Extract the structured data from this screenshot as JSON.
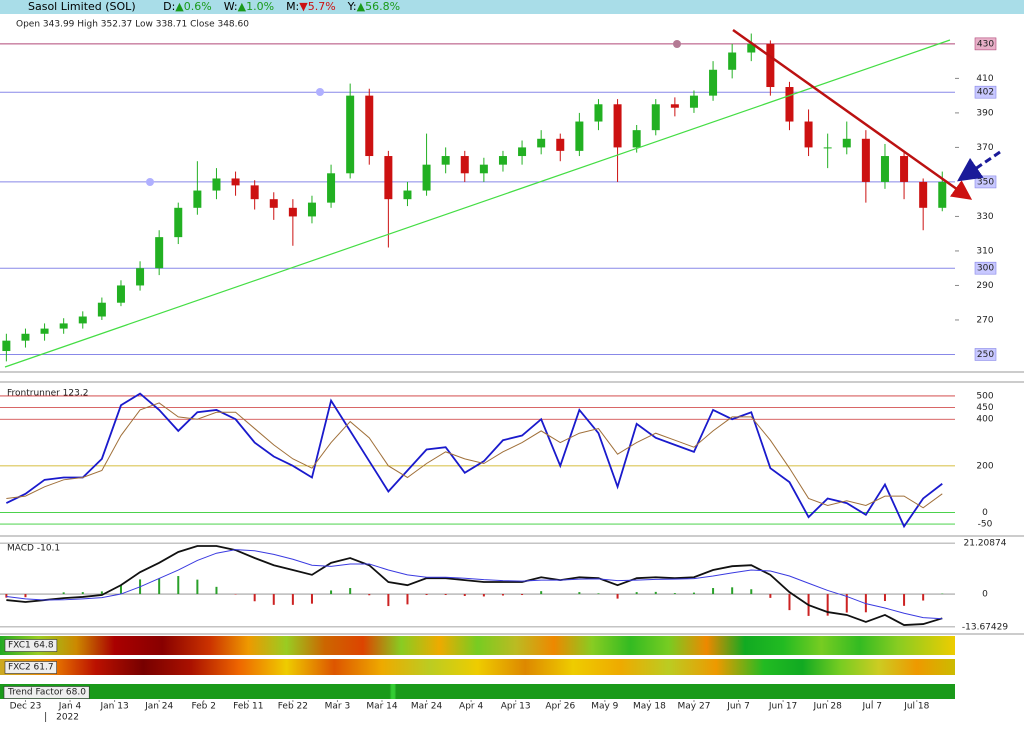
{
  "header": {
    "title": "Sasol Limited (SOL)",
    "changes": [
      {
        "label": "D:",
        "value": "▲0.6%",
        "color": "#1a9a1a"
      },
      {
        "label": "W:",
        "value": "▲1.0%",
        "color": "#1a9a1a"
      },
      {
        "label": "M:",
        "value": "▼5.7%",
        "color": "#cc1111"
      },
      {
        "label": "Y:",
        "value": "▲56.8%",
        "color": "#1a9a1a"
      }
    ]
  },
  "chart_data": [
    {
      "type": "candlestick",
      "subtitle": "Open 343.99  High 352.37  Low 338.71  Close 348.60",
      "x": [
        0,
        3,
        6,
        9,
        12,
        15,
        18,
        21,
        24,
        27,
        30,
        33,
        36,
        39,
        42,
        45,
        48,
        51,
        54,
        57,
        60,
        63,
        66,
        69,
        72,
        75,
        78,
        81,
        84,
        87,
        90,
        93,
        96,
        99,
        102,
        105,
        108,
        111,
        114,
        117,
        120,
        123,
        126,
        129,
        132,
        135,
        138,
        141,
        144,
        147
      ],
      "open": [
        252,
        258,
        262,
        265,
        268,
        272,
        280,
        290,
        300,
        318,
        335,
        345,
        352,
        348,
        340,
        335,
        330,
        338,
        355,
        400,
        365,
        340,
        345,
        360,
        365,
        355,
        360,
        365,
        370,
        375,
        368,
        385,
        395,
        370,
        380,
        395,
        393,
        400,
        415,
        425,
        430,
        405,
        385,
        370,
        370,
        375,
        350,
        365,
        350,
        335
      ],
      "high": [
        262,
        265,
        268,
        271,
        275,
        283,
        293,
        304,
        322,
        338,
        362,
        358,
        356,
        351,
        344,
        340,
        342,
        360,
        407,
        404,
        368,
        350,
        378,
        370,
        368,
        364,
        368,
        374,
        380,
        378,
        390,
        398,
        398,
        383,
        398,
        399,
        403,
        420,
        430,
        436,
        432,
        408,
        392,
        378,
        385,
        380,
        372,
        368,
        352,
        356
      ],
      "low": [
        246,
        254,
        258,
        262,
        265,
        270,
        278,
        287,
        296,
        314,
        331,
        340,
        342,
        334,
        328,
        313,
        326,
        335,
        352,
        360,
        312,
        336,
        342,
        355,
        350,
        350,
        356,
        360,
        366,
        362,
        365,
        380,
        350,
        367,
        377,
        388,
        390,
        397,
        410,
        420,
        400,
        380,
        365,
        358,
        366,
        338,
        346,
        340,
        322,
        333
      ],
      "close": [
        258,
        262,
        265,
        268,
        272,
        280,
        290,
        300,
        318,
        335,
        345,
        352,
        348,
        340,
        335,
        330,
        338,
        355,
        400,
        365,
        340,
        345,
        360,
        365,
        355,
        360,
        365,
        370,
        375,
        368,
        385,
        395,
        370,
        380,
        395,
        393,
        400,
        415,
        425,
        430,
        405,
        385,
        370,
        370,
        375,
        350,
        365,
        350,
        335,
        350
      ],
      "up_color": "#22b022",
      "down_color": "#cc1111",
      "xlim": [
        -1,
        149
      ],
      "ylim": [
        241,
        445
      ],
      "yticks": [
        270,
        290,
        310,
        330,
        370,
        390,
        410
      ],
      "levels": [
        {
          "value": 430,
          "color": "#b04878",
          "fill": "#e8b0c8"
        },
        {
          "value": 402,
          "color": "#8888e8",
          "fill": "#c8c8ff"
        },
        {
          "value": 350,
          "color": "#8888e8",
          "fill": "#c8c8ff"
        },
        {
          "value": 300,
          "color": "#8888e8",
          "fill": "#c8c8ff"
        },
        {
          "value": 250,
          "color": "#8888e8",
          "fill": "#c8c8ff"
        }
      ],
      "xticks": [
        {
          "value": 3,
          "label": "Dec 23"
        },
        {
          "value": 10,
          "label": "Jan 4"
        },
        {
          "value": 17,
          "label": "Jan 13"
        },
        {
          "value": 24,
          "label": "Jan 24"
        },
        {
          "value": 31,
          "label": "Feb 2"
        },
        {
          "value": 38,
          "label": "Feb 11"
        },
        {
          "value": 45,
          "label": "Feb 22"
        },
        {
          "value": 52,
          "label": "Mar 3"
        },
        {
          "value": 59,
          "label": "Mar 14"
        },
        {
          "value": 66,
          "label": "Mar 24"
        },
        {
          "value": 73,
          "label": "Apr 4"
        },
        {
          "value": 80,
          "label": "Apr 13"
        },
        {
          "value": 87,
          "label": "Apr 26"
        },
        {
          "value": 94,
          "label": "May 9"
        },
        {
          "value": 101,
          "label": "May 18"
        },
        {
          "value": 108,
          "label": "May 27"
        },
        {
          "value": 115,
          "label": "Jun 7"
        },
        {
          "value": 122,
          "label": "Jun 17"
        },
        {
          "value": 129,
          "label": "Jun 28"
        },
        {
          "value": 136,
          "label": "Jul 7"
        },
        {
          "value": 143,
          "label": "Jul 18"
        }
      ],
      "year_tick": {
        "value": 6,
        "label": "2022"
      }
    },
    {
      "type": "line",
      "title": "Frontrunner 123.2",
      "x": [
        0,
        3,
        6,
        9,
        12,
        15,
        18,
        21,
        24,
        27,
        30,
        33,
        36,
        39,
        42,
        45,
        48,
        51,
        54,
        57,
        60,
        63,
        66,
        69,
        72,
        75,
        78,
        81,
        84,
        87,
        90,
        93,
        96,
        99,
        102,
        105,
        108,
        111,
        114,
        117,
        120,
        123,
        126,
        129,
        132,
        135,
        138,
        141,
        144,
        147
      ],
      "series": [
        {
          "color": "#1a1acc",
          "values": [
            40,
            80,
            140,
            150,
            150,
            230,
            460,
            510,
            440,
            350,
            430,
            440,
            400,
            300,
            240,
            200,
            150,
            480,
            350,
            220,
            90,
            180,
            270,
            280,
            170,
            220,
            310,
            330,
            400,
            200,
            440,
            340,
            110,
            380,
            320,
            290,
            260,
            440,
            400,
            430,
            190,
            130,
            -20,
            60,
            40,
            -10,
            120,
            -60,
            60,
            123.2
          ]
        },
        {
          "color": "#a0703a",
          "values": [
            60,
            70,
            110,
            140,
            150,
            180,
            330,
            440,
            470,
            410,
            400,
            430,
            430,
            360,
            290,
            230,
            190,
            300,
            390,
            320,
            200,
            150,
            210,
            260,
            230,
            210,
            260,
            300,
            350,
            300,
            340,
            360,
            250,
            300,
            340,
            310,
            280,
            350,
            410,
            410,
            310,
            190,
            60,
            30,
            50,
            30,
            70,
            70,
            20,
            80
          ]
        }
      ],
      "xlim": [
        -1,
        149
      ],
      "ylim": [
        -84,
        547
      ],
      "yticks": [
        500,
        450,
        400,
        200,
        0,
        -50
      ],
      "tick_colors": [
        "#cc3333",
        "#cc3333",
        "#cc3333",
        "#c8a800",
        "#33cc33",
        "#33cc33"
      ]
    },
    {
      "type": "line",
      "title": "MACD -10.1",
      "x": [
        0,
        3,
        6,
        9,
        12,
        15,
        18,
        21,
        24,
        27,
        30,
        33,
        36,
        39,
        42,
        45,
        48,
        51,
        54,
        57,
        60,
        63,
        66,
        69,
        72,
        75,
        78,
        81,
        84,
        87,
        90,
        93,
        96,
        99,
        102,
        105,
        108,
        111,
        114,
        117,
        120,
        123,
        126,
        129,
        132,
        135,
        138,
        141,
        144,
        147
      ],
      "series": [
        {
          "color": "#111111",
          "values": [
            -2.5,
            -3.3,
            -2.5,
            -1.7,
            -1.2,
            -0.4,
            3.7,
            9.1,
            13,
            17.5,
            20,
            20,
            18.3,
            15,
            12,
            10,
            8,
            13,
            15,
            12,
            5,
            3.7,
            6.6,
            6.6,
            5.8,
            5,
            5,
            5,
            7,
            5.8,
            7,
            6.6,
            3.7,
            6.6,
            7,
            6.6,
            7,
            10,
            11.6,
            12,
            8,
            0.8,
            -4.6,
            -7.5,
            -8.7,
            -11.6,
            -8.7,
            -12.9,
            -12.5,
            -10.1
          ]
        },
        {
          "color": "#3a3ae0",
          "values": [
            -1,
            -2,
            -2.5,
            -2.4,
            -2,
            -1.5,
            0,
            3,
            6.5,
            10,
            14,
            17,
            18.5,
            18,
            16.5,
            14.5,
            12,
            11.5,
            12.5,
            12.5,
            10,
            8,
            7,
            7,
            6.6,
            6,
            5.6,
            5.4,
            5.8,
            5.8,
            6.2,
            6.3,
            5.6,
            5.8,
            6.1,
            6.2,
            6.4,
            7.5,
            8.8,
            10,
            9.6,
            7.5,
            4.5,
            1.5,
            -1,
            -4,
            -5.8,
            -8,
            -9.8,
            -10.3
          ]
        }
      ],
      "histogram": {
        "up_color": "#2aa02a",
        "down_color": "#cc2222",
        "values": [
          -1.5,
          -1.3,
          0,
          0.7,
          0.8,
          1.1,
          3.7,
          6.1,
          6.5,
          7.5,
          6,
          3,
          -0.2,
          -3,
          -4.5,
          -4.5,
          -4,
          1.5,
          2.5,
          -0.5,
          -5,
          -4.3,
          -0.4,
          -0.4,
          -0.8,
          -1,
          -0.6,
          -0.4,
          1.2,
          0,
          0.8,
          0.3,
          -1.9,
          0.8,
          0.9,
          0.4,
          0.6,
          2.5,
          2.8,
          2,
          -1.6,
          -6.7,
          -9.1,
          -9,
          -7.7,
          -7.6,
          -2.9,
          -4.9,
          -2.7,
          0.2
        ]
      },
      "xlim": [
        -1,
        149
      ],
      "ylim": [
        -15.8,
        22.5
      ],
      "yticks": [
        21.20874,
        0,
        -13.67429
      ],
      "tick_colors": [
        "#888888",
        "#888888",
        "#888888"
      ]
    }
  ],
  "indicator_bars": [
    {
      "label": "FXC1 64.8"
    },
    {
      "label": "FXC2 61.7"
    },
    {
      "label": "Trend Factor 68.0"
    }
  ]
}
